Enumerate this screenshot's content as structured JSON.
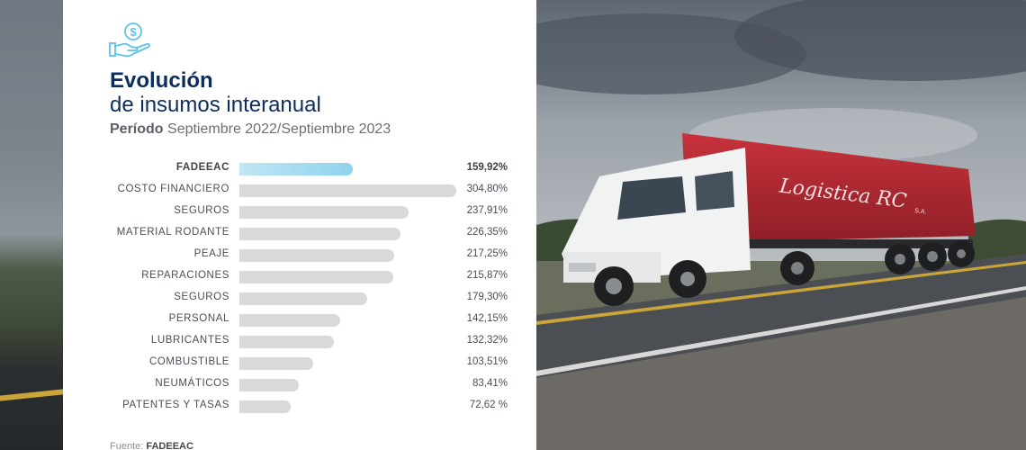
{
  "title": {
    "line1": "Evolución",
    "line2": "de insumos interanual"
  },
  "period": {
    "label": "Período",
    "value": "Septiembre 2022/Septiembre 2023"
  },
  "source": {
    "label": "Fuente:",
    "value": "FADEEAC"
  },
  "photo": {
    "trailer_text": "Logistica RC",
    "trailer_suffix": "S.A."
  },
  "icon": "money-hand-icon",
  "colors": {
    "title": "#0d2e5c",
    "highlight_bar": "#8ed3ee",
    "bar": "#d9d9d9"
  },
  "chart_data": {
    "type": "bar",
    "orientation": "horizontal",
    "categories": [
      "FADEEAC",
      "COSTO FINANCIERO",
      "SEGUROS",
      "MATERIAL RODANTE",
      "PEAJE",
      "REPARACIONES",
      "SEGUROS",
      "PERSONAL",
      "LUBRICANTES",
      "COMBUSTIBLE",
      "NEUMÁTICOS",
      "PATENTES Y TASAS"
    ],
    "values": [
      159.92,
      304.8,
      237.91,
      226.35,
      217.25,
      215.87,
      179.3,
      142.15,
      132.32,
      103.51,
      83.41,
      72.62
    ],
    "labels": [
      "159,92%",
      "304,80%",
      "237,91%",
      "226,35%",
      "217,25%",
      "215,87%",
      "179,30%",
      "142,15%",
      "132,32%",
      "103,51%",
      "83,41%",
      "72,62 %"
    ],
    "highlight_index": 0,
    "xlim": [
      0,
      304.8
    ]
  }
}
